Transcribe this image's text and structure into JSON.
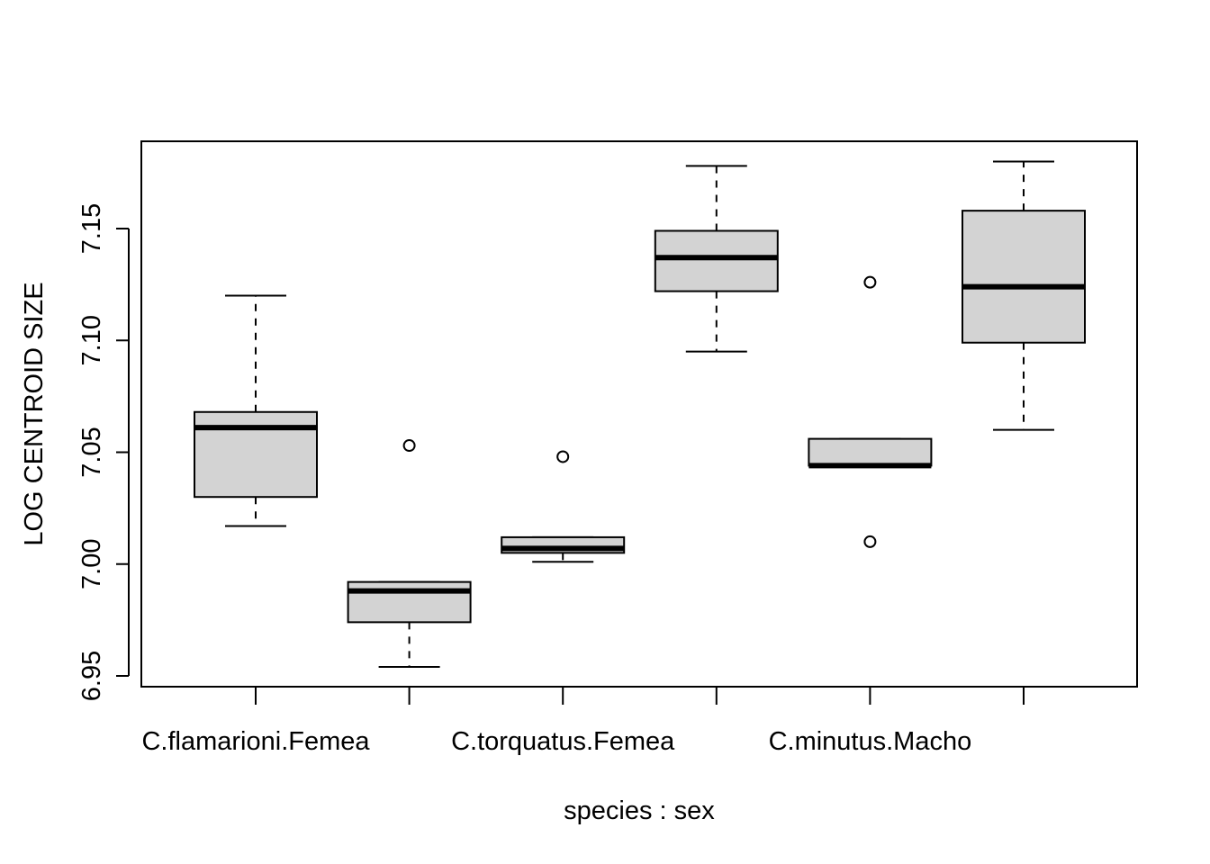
{
  "chart_data": {
    "type": "boxplot",
    "title": "",
    "xlabel": "species : sex",
    "ylabel": "LOG CENTROID SIZE",
    "ylim": [
      6.945,
      7.19
    ],
    "yticks": [
      "6.95",
      "7.00",
      "7.05",
      "7.10",
      "7.15"
    ],
    "xtick_labels": [
      "C.flamarioni.Femea",
      "",
      "C.torquatus.Femea",
      "",
      "C.minutus.Macho",
      ""
    ],
    "box_fill": "#d3d3d3",
    "grid": false,
    "boxes": [
      {
        "whisker_low": 7.017,
        "q1": 7.03,
        "median": 7.061,
        "q3": 7.068,
        "whisker_high": 7.12,
        "outliers": []
      },
      {
        "whisker_low": 6.954,
        "q1": 6.974,
        "median": 6.988,
        "q3": 6.992,
        "whisker_high": 6.992,
        "outliers": [
          7.053
        ]
      },
      {
        "whisker_low": 7.001,
        "q1": 7.005,
        "median": 7.007,
        "q3": 7.012,
        "whisker_high": 7.012,
        "outliers": [
          7.048
        ]
      },
      {
        "whisker_low": 7.095,
        "q1": 7.122,
        "median": 7.137,
        "q3": 7.149,
        "whisker_high": 7.178,
        "outliers": []
      },
      {
        "whisker_low": 7.044,
        "q1": 7.044,
        "median": 7.044,
        "q3": 7.056,
        "whisker_high": 7.056,
        "outliers": [
          7.126,
          7.01
        ]
      },
      {
        "whisker_low": 7.06,
        "q1": 7.099,
        "median": 7.124,
        "q3": 7.158,
        "whisker_high": 7.18,
        "outliers": []
      }
    ]
  }
}
